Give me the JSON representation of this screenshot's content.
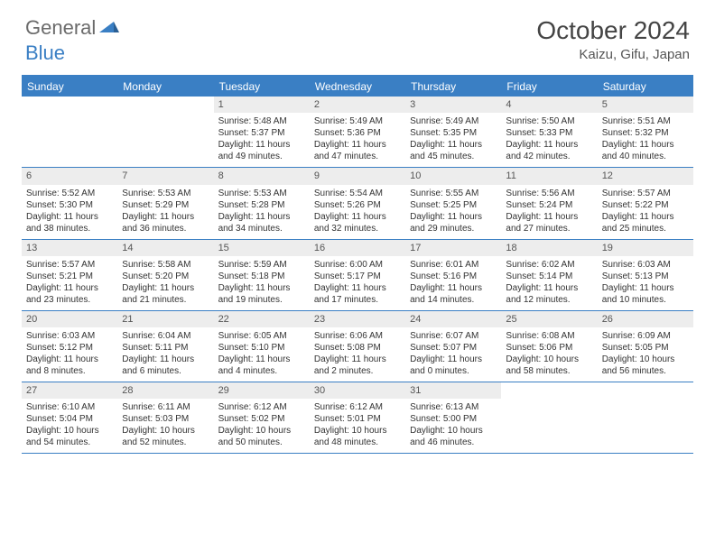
{
  "logo": {
    "text1": "General",
    "text2": "Blue"
  },
  "title": "October 2024",
  "location": "Kaizu, Gifu, Japan",
  "colors": {
    "accent": "#3a7fc4",
    "header_gray": "#ededed",
    "text": "#333333",
    "title_text": "#444444",
    "logo_gray": "#6b6b6b"
  },
  "day_names": [
    "Sunday",
    "Monday",
    "Tuesday",
    "Wednesday",
    "Thursday",
    "Friday",
    "Saturday"
  ],
  "weeks": [
    [
      {
        "empty": true
      },
      {
        "empty": true
      },
      {
        "num": "1",
        "sunrise": "Sunrise: 5:48 AM",
        "sunset": "Sunset: 5:37 PM",
        "daylight": "Daylight: 11 hours and 49 minutes."
      },
      {
        "num": "2",
        "sunrise": "Sunrise: 5:49 AM",
        "sunset": "Sunset: 5:36 PM",
        "daylight": "Daylight: 11 hours and 47 minutes."
      },
      {
        "num": "3",
        "sunrise": "Sunrise: 5:49 AM",
        "sunset": "Sunset: 5:35 PM",
        "daylight": "Daylight: 11 hours and 45 minutes."
      },
      {
        "num": "4",
        "sunrise": "Sunrise: 5:50 AM",
        "sunset": "Sunset: 5:33 PM",
        "daylight": "Daylight: 11 hours and 42 minutes."
      },
      {
        "num": "5",
        "sunrise": "Sunrise: 5:51 AM",
        "sunset": "Sunset: 5:32 PM",
        "daylight": "Daylight: 11 hours and 40 minutes."
      }
    ],
    [
      {
        "num": "6",
        "sunrise": "Sunrise: 5:52 AM",
        "sunset": "Sunset: 5:30 PM",
        "daylight": "Daylight: 11 hours and 38 minutes."
      },
      {
        "num": "7",
        "sunrise": "Sunrise: 5:53 AM",
        "sunset": "Sunset: 5:29 PM",
        "daylight": "Daylight: 11 hours and 36 minutes."
      },
      {
        "num": "8",
        "sunrise": "Sunrise: 5:53 AM",
        "sunset": "Sunset: 5:28 PM",
        "daylight": "Daylight: 11 hours and 34 minutes."
      },
      {
        "num": "9",
        "sunrise": "Sunrise: 5:54 AM",
        "sunset": "Sunset: 5:26 PM",
        "daylight": "Daylight: 11 hours and 32 minutes."
      },
      {
        "num": "10",
        "sunrise": "Sunrise: 5:55 AM",
        "sunset": "Sunset: 5:25 PM",
        "daylight": "Daylight: 11 hours and 29 minutes."
      },
      {
        "num": "11",
        "sunrise": "Sunrise: 5:56 AM",
        "sunset": "Sunset: 5:24 PM",
        "daylight": "Daylight: 11 hours and 27 minutes."
      },
      {
        "num": "12",
        "sunrise": "Sunrise: 5:57 AM",
        "sunset": "Sunset: 5:22 PM",
        "daylight": "Daylight: 11 hours and 25 minutes."
      }
    ],
    [
      {
        "num": "13",
        "sunrise": "Sunrise: 5:57 AM",
        "sunset": "Sunset: 5:21 PM",
        "daylight": "Daylight: 11 hours and 23 minutes."
      },
      {
        "num": "14",
        "sunrise": "Sunrise: 5:58 AM",
        "sunset": "Sunset: 5:20 PM",
        "daylight": "Daylight: 11 hours and 21 minutes."
      },
      {
        "num": "15",
        "sunrise": "Sunrise: 5:59 AM",
        "sunset": "Sunset: 5:18 PM",
        "daylight": "Daylight: 11 hours and 19 minutes."
      },
      {
        "num": "16",
        "sunrise": "Sunrise: 6:00 AM",
        "sunset": "Sunset: 5:17 PM",
        "daylight": "Daylight: 11 hours and 17 minutes."
      },
      {
        "num": "17",
        "sunrise": "Sunrise: 6:01 AM",
        "sunset": "Sunset: 5:16 PM",
        "daylight": "Daylight: 11 hours and 14 minutes."
      },
      {
        "num": "18",
        "sunrise": "Sunrise: 6:02 AM",
        "sunset": "Sunset: 5:14 PM",
        "daylight": "Daylight: 11 hours and 12 minutes."
      },
      {
        "num": "19",
        "sunrise": "Sunrise: 6:03 AM",
        "sunset": "Sunset: 5:13 PM",
        "daylight": "Daylight: 11 hours and 10 minutes."
      }
    ],
    [
      {
        "num": "20",
        "sunrise": "Sunrise: 6:03 AM",
        "sunset": "Sunset: 5:12 PM",
        "daylight": "Daylight: 11 hours and 8 minutes."
      },
      {
        "num": "21",
        "sunrise": "Sunrise: 6:04 AM",
        "sunset": "Sunset: 5:11 PM",
        "daylight": "Daylight: 11 hours and 6 minutes."
      },
      {
        "num": "22",
        "sunrise": "Sunrise: 6:05 AM",
        "sunset": "Sunset: 5:10 PM",
        "daylight": "Daylight: 11 hours and 4 minutes."
      },
      {
        "num": "23",
        "sunrise": "Sunrise: 6:06 AM",
        "sunset": "Sunset: 5:08 PM",
        "daylight": "Daylight: 11 hours and 2 minutes."
      },
      {
        "num": "24",
        "sunrise": "Sunrise: 6:07 AM",
        "sunset": "Sunset: 5:07 PM",
        "daylight": "Daylight: 11 hours and 0 minutes."
      },
      {
        "num": "25",
        "sunrise": "Sunrise: 6:08 AM",
        "sunset": "Sunset: 5:06 PM",
        "daylight": "Daylight: 10 hours and 58 minutes."
      },
      {
        "num": "26",
        "sunrise": "Sunrise: 6:09 AM",
        "sunset": "Sunset: 5:05 PM",
        "daylight": "Daylight: 10 hours and 56 minutes."
      }
    ],
    [
      {
        "num": "27",
        "sunrise": "Sunrise: 6:10 AM",
        "sunset": "Sunset: 5:04 PM",
        "daylight": "Daylight: 10 hours and 54 minutes."
      },
      {
        "num": "28",
        "sunrise": "Sunrise: 6:11 AM",
        "sunset": "Sunset: 5:03 PM",
        "daylight": "Daylight: 10 hours and 52 minutes."
      },
      {
        "num": "29",
        "sunrise": "Sunrise: 6:12 AM",
        "sunset": "Sunset: 5:02 PM",
        "daylight": "Daylight: 10 hours and 50 minutes."
      },
      {
        "num": "30",
        "sunrise": "Sunrise: 6:12 AM",
        "sunset": "Sunset: 5:01 PM",
        "daylight": "Daylight: 10 hours and 48 minutes."
      },
      {
        "num": "31",
        "sunrise": "Sunrise: 6:13 AM",
        "sunset": "Sunset: 5:00 PM",
        "daylight": "Daylight: 10 hours and 46 minutes."
      },
      {
        "empty": true
      },
      {
        "empty": true
      }
    ]
  ]
}
